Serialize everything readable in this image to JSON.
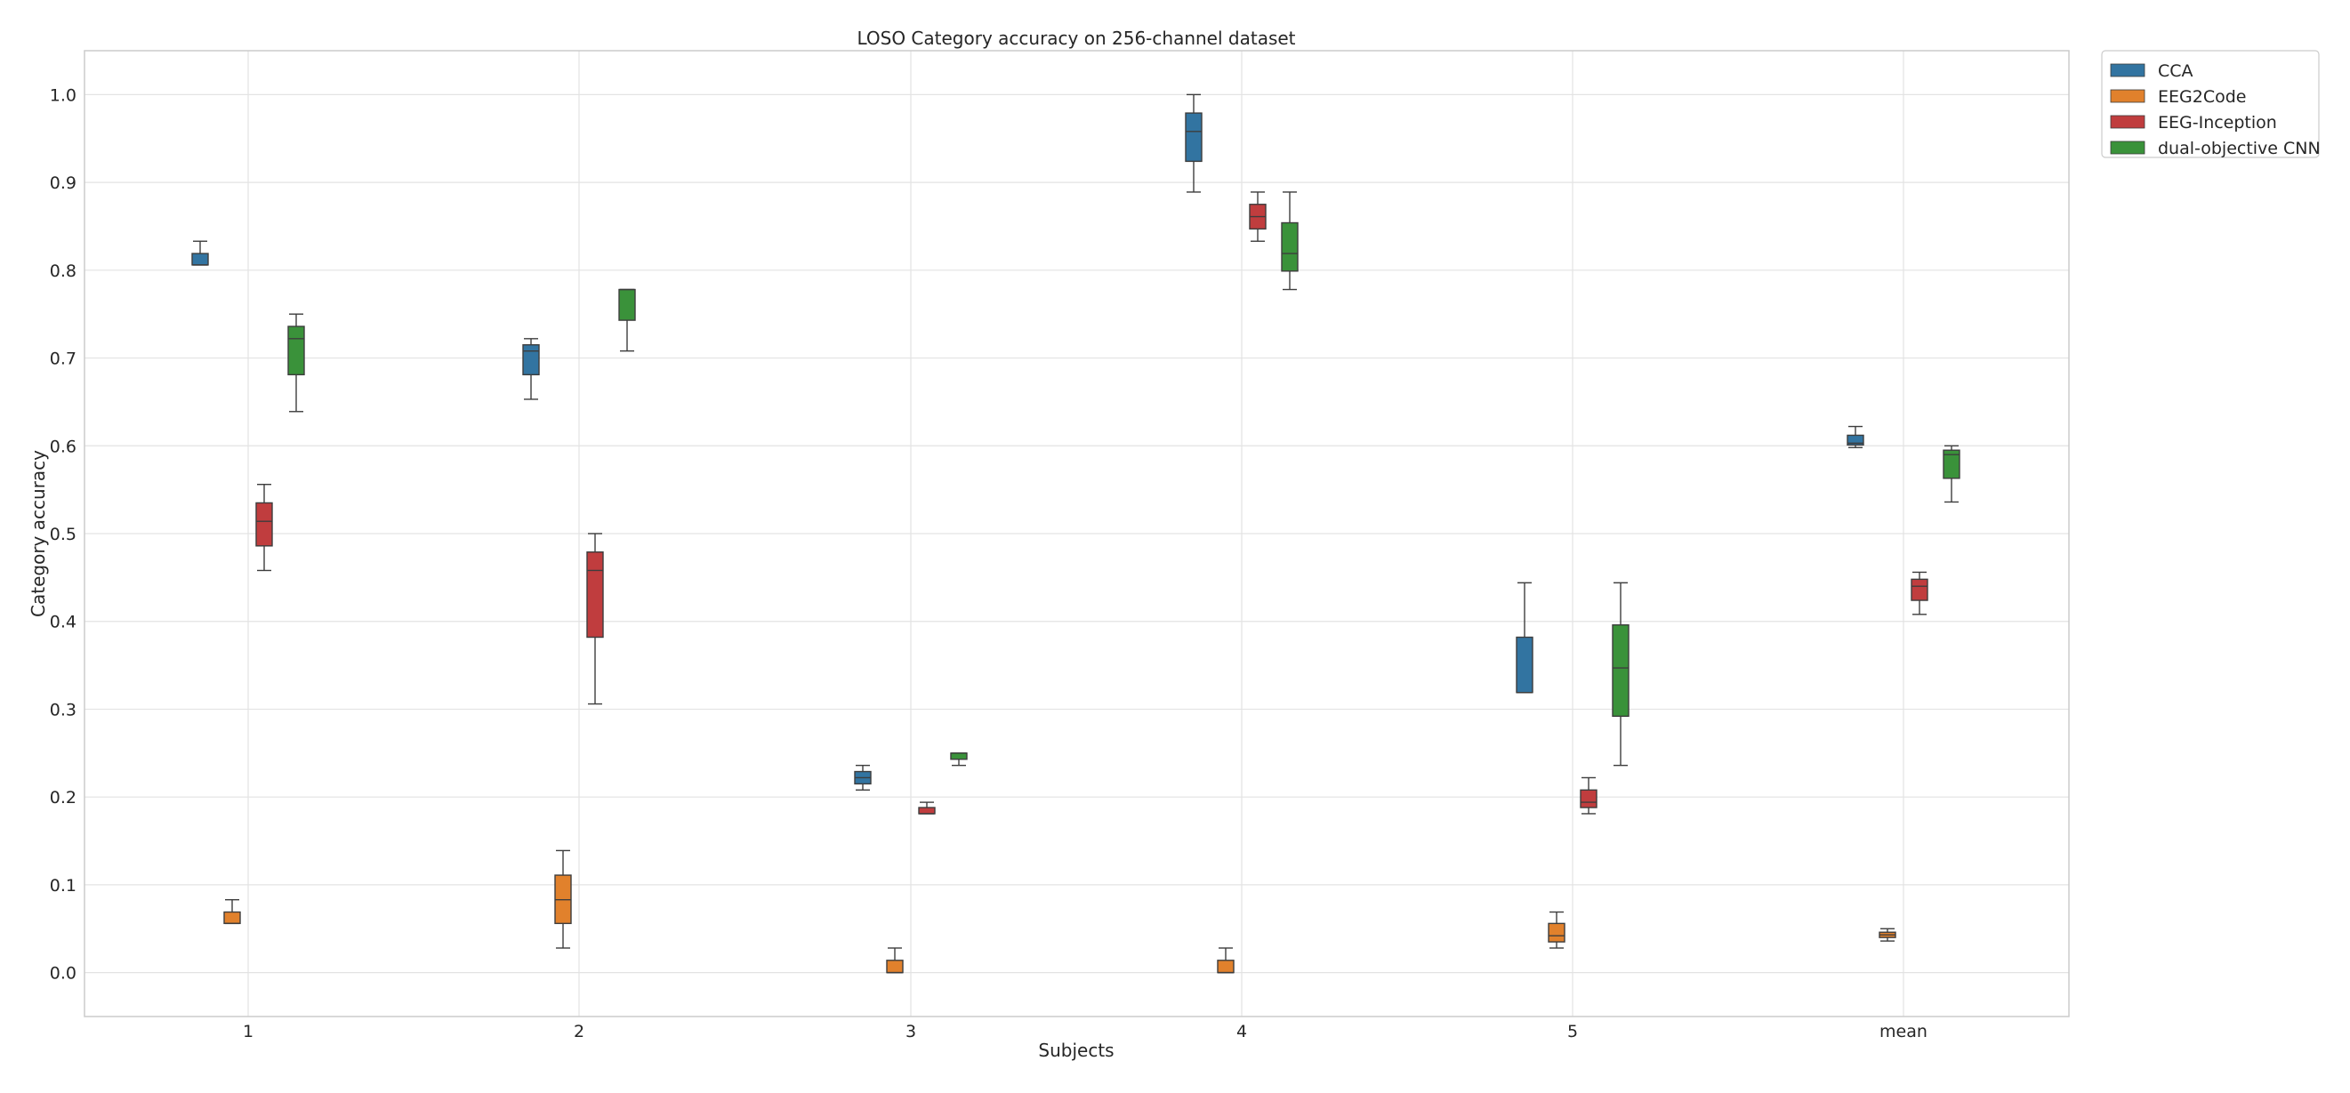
{
  "chart_data": {
    "type": "box",
    "title": "LOSO Category accuracy on 256-channel dataset",
    "xlabel": "Subjects",
    "ylabel": "Category accuracy",
    "categories": [
      "1",
      "2",
      "3",
      "4",
      "5",
      "mean"
    ],
    "ylim": [
      -0.05,
      1.05
    ],
    "yticks": [
      0.0,
      0.1,
      0.2,
      0.3,
      0.4,
      0.5,
      0.6,
      0.7,
      0.8,
      0.9,
      1.0
    ],
    "grid": true,
    "legend_position": "upper-right-outside",
    "series": [
      {
        "name": "CCA",
        "color": "#3274a1",
        "boxes": [
          {
            "whislo": 0.806,
            "q1": 0.806,
            "med": 0.806,
            "q3": 0.819,
            "whishi": 0.833
          },
          {
            "whislo": 0.653,
            "q1": 0.681,
            "med": 0.708,
            "q3": 0.715,
            "whishi": 0.722
          },
          {
            "whislo": 0.208,
            "q1": 0.215,
            "med": 0.222,
            "q3": 0.229,
            "whishi": 0.236
          },
          {
            "whislo": 0.889,
            "q1": 0.924,
            "med": 0.958,
            "q3": 0.979,
            "whishi": 1.0
          },
          {
            "whislo": 0.319,
            "q1": 0.319,
            "med": 0.319,
            "q3": 0.382,
            "whishi": 0.444
          },
          {
            "whislo": 0.598,
            "q1": 0.601,
            "med": 0.603,
            "q3": 0.612,
            "whishi": 0.622
          }
        ]
      },
      {
        "name": "EEG2Code",
        "color": "#e1812c",
        "boxes": [
          {
            "whislo": 0.056,
            "q1": 0.056,
            "med": 0.056,
            "q3": 0.069,
            "whishi": 0.083
          },
          {
            "whislo": 0.028,
            "q1": 0.056,
            "med": 0.083,
            "q3": 0.111,
            "whishi": 0.139
          },
          {
            "whislo": 0.0,
            "q1": 0.0,
            "med": 0.0,
            "q3": 0.014,
            "whishi": 0.028
          },
          {
            "whislo": 0.0,
            "q1": 0.0,
            "med": 0.0,
            "q3": 0.014,
            "whishi": 0.028
          },
          {
            "whislo": 0.028,
            "q1": 0.035,
            "med": 0.042,
            "q3": 0.056,
            "whishi": 0.069
          },
          {
            "whislo": 0.036,
            "q1": 0.04,
            "med": 0.043,
            "q3": 0.046,
            "whishi": 0.05
          }
        ]
      },
      {
        "name": "EEG-Inception",
        "color": "#c03d3e",
        "boxes": [
          {
            "whislo": 0.458,
            "q1": 0.486,
            "med": 0.514,
            "q3": 0.535,
            "whishi": 0.556
          },
          {
            "whislo": 0.306,
            "q1": 0.382,
            "med": 0.458,
            "q3": 0.479,
            "whishi": 0.5
          },
          {
            "whislo": 0.181,
            "q1": 0.181,
            "med": 0.181,
            "q3": 0.188,
            "whishi": 0.194
          },
          {
            "whislo": 0.833,
            "q1": 0.847,
            "med": 0.861,
            "q3": 0.875,
            "whishi": 0.889
          },
          {
            "whislo": 0.181,
            "q1": 0.188,
            "med": 0.194,
            "q3": 0.208,
            "whishi": 0.222
          },
          {
            "whislo": 0.408,
            "q1": 0.424,
            "med": 0.44,
            "q3": 0.448,
            "whishi": 0.456
          }
        ]
      },
      {
        "name": "dual-objective CNN",
        "color": "#3a923a",
        "boxes": [
          {
            "whislo": 0.639,
            "q1": 0.681,
            "med": 0.722,
            "q3": 0.736,
            "whishi": 0.75
          },
          {
            "whislo": 0.708,
            "q1": 0.743,
            "med": 0.778,
            "q3": 0.778,
            "whishi": 0.778
          },
          {
            "whislo": 0.236,
            "q1": 0.243,
            "med": 0.25,
            "q3": 0.25,
            "whishi": 0.25
          },
          {
            "whislo": 0.778,
            "q1": 0.799,
            "med": 0.819,
            "q3": 0.854,
            "whishi": 0.889
          },
          {
            "whislo": 0.236,
            "q1": 0.292,
            "med": 0.347,
            "q3": 0.396,
            "whishi": 0.444
          },
          {
            "whislo": 0.536,
            "q1": 0.563,
            "med": 0.59,
            "q3": 0.595,
            "whishi": 0.6
          }
        ]
      }
    ]
  }
}
